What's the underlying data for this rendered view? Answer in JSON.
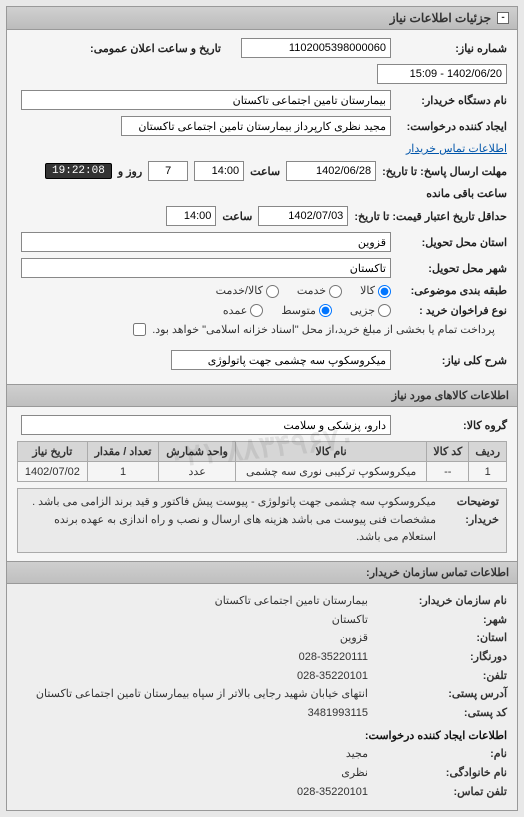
{
  "panel": {
    "title": "جزئیات اطلاعات نیاز"
  },
  "fields": {
    "need_number_label": "شماره نیاز:",
    "need_number": "1102005398000060",
    "public_announce_label": "تاریخ و ساعت اعلان عمومی:",
    "public_announce": "1402/06/20 - 15:09",
    "buyer_org_label": "نام دستگاه خریدار:",
    "buyer_org": "بیمارستان تامین اجتماعی تاکستان",
    "requester_label": "ایجاد کننده درخواست:",
    "requester": "مجید نظری کارپرداز بیمارستان تامین اجتماعی تاکستان",
    "buyer_contact_link": "اطلاعات تماس خریدار",
    "deadline_label": "مهلت ارسال پاسخ: تا تاریخ:",
    "deadline_date": "1402/06/28",
    "time_label": "ساعت",
    "deadline_time": "14:00",
    "remaining_days_label": "روز و",
    "remaining_days": "7",
    "remaining_time": "19:22:08",
    "remaining_suffix": "ساعت باقی مانده",
    "validity_label": "حداقل تاریخ اعتبار قیمت: تا تاریخ:",
    "validity_date": "1402/07/03",
    "validity_time": "14:00",
    "delivery_province_label": "استان محل تحویل:",
    "delivery_province": "قزوین",
    "delivery_city_label": "شهر محل تحویل:",
    "delivery_city": "تاکستان",
    "class_label": "طبقه بندی موضوعی:",
    "class_opts": {
      "goods": "کالا",
      "service": "خدمت",
      "both": "کالا/خدمت"
    },
    "priority_label": "نوع فراخوان خريد :",
    "priority_opts": {
      "low": "جزیی",
      "mid": "متوسط",
      "high": "عمده"
    },
    "payment_note": "پرداخت تمام یا بخشی از مبلغ خرید،از محل \"اسناد خزانه اسلامی\" خواهد بود.",
    "need_title_label": "شرح کلی نیاز:",
    "need_title": "میکروسکوپ سه چشمی جهت پاتولوژی"
  },
  "items_section": {
    "title": "اطلاعات کالاهای مورد نیاز",
    "group_label": "گروه کالا:",
    "group_value": "دارو، پزشکی و سلامت",
    "columns": [
      "ردیف",
      "کد کالا",
      "نام کالا",
      "واحد شمارش",
      "تعداد / مقدار",
      "تاریخ نیاز"
    ],
    "rows": [
      [
        "1",
        "--",
        "میکروسکوپ ترکیبی نوری سه چشمی",
        "عدد",
        "1",
        "1402/07/02"
      ]
    ],
    "desc_label": "توضیحات خریدار:",
    "desc_text": "میکروسکوپ سه چشمی جهت پاتولوژی - پیوست پیش فاکتور و قید برند الزامی می باشد . مشخصات فنی پیوست می باشد هزینه های ارسال و نصب و راه اندازی به عهده برنده استعلام می باشد."
  },
  "contact": {
    "title": "اطلاعات تماس سازمان خریدار:",
    "org_label": "نام سازمان خریدار:",
    "org": "بیمارستان تامین اجتماعی تاکستان",
    "city_label": "شهر:",
    "city": "تاکستان",
    "province_label": "استان:",
    "province": "قزوین",
    "fax_label": "دورنگار:",
    "fax": "028-35220111",
    "phone_label": "تلفن:",
    "phone": "028-35220101",
    "address_label": "آدرس پستی:",
    "address": "انتهای خیابان شهید رجایی بالاتر از سپاه بیمارستان تامین اجتماعی تاکستان",
    "postal_label": "کد پستی:",
    "postal": "3481993115",
    "creator_title": "اطلاعات ایجاد کننده درخواست:",
    "name_label": "نام:",
    "name": "مجید",
    "family_label": "نام خانوادگی:",
    "family": "نظری",
    "cphone_label": "تلفن تماس:",
    "cphone": "028-35220101"
  },
  "watermark": "۰۲۱-۸۸۳۴۹۶۷۰"
}
